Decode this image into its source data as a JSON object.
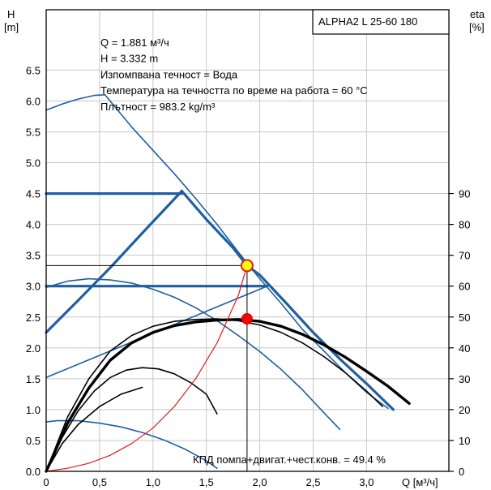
{
  "chart_data": {
    "type": "line",
    "title": "ALPHA2 L 25-60 180",
    "left_axis_label": {
      "symbol": "H",
      "unit": "[m]"
    },
    "right_axis_label": {
      "symbol": "eta",
      "unit": "[%]"
    },
    "x_axis_label": "Q [м³/ч]",
    "xlim": [
      0,
      3.8
    ],
    "ylim": [
      0,
      7.0
    ],
    "eta_lim": [
      0,
      90
    ],
    "x_ticks": [
      {
        "v": 0,
        "label": "0"
      },
      {
        "v": 0.5,
        "label": "0,5"
      },
      {
        "v": 1.0,
        "label": "1,0"
      },
      {
        "v": 1.5,
        "label": "1,5"
      },
      {
        "v": 2.0,
        "label": "2,0"
      },
      {
        "v": 2.5,
        "label": "2,5"
      },
      {
        "v": 3.0,
        "label": "3,0"
      }
    ],
    "y_ticks": [
      {
        "v": 0.0,
        "label": "0.0"
      },
      {
        "v": 0.5,
        "label": "0.5"
      },
      {
        "v": 1.0,
        "label": "1.0"
      },
      {
        "v": 1.5,
        "label": "1.5"
      },
      {
        "v": 2.0,
        "label": "2.0"
      },
      {
        "v": 2.5,
        "label": "2.5"
      },
      {
        "v": 3.0,
        "label": "3.0"
      },
      {
        "v": 3.5,
        "label": "3.5"
      },
      {
        "v": 4.0,
        "label": "4.0"
      },
      {
        "v": 4.5,
        "label": "4.5"
      },
      {
        "v": 5.0,
        "label": "5.0"
      },
      {
        "v": 5.5,
        "label": "5.5"
      },
      {
        "v": 6.0,
        "label": "6.0"
      },
      {
        "v": 6.5,
        "label": "6.5"
      }
    ],
    "eta_ticks": [
      {
        "v": 0,
        "label": "0"
      },
      {
        "v": 10,
        "label": "10"
      },
      {
        "v": 20,
        "label": "20"
      },
      {
        "v": 30,
        "label": "30"
      },
      {
        "v": 40,
        "label": "40"
      },
      {
        "v": 50,
        "label": "50"
      },
      {
        "v": 60,
        "label": "60"
      },
      {
        "v": 70,
        "label": "70"
      },
      {
        "v": 80,
        "label": "80"
      },
      {
        "v": 90,
        "label": "90"
      }
    ],
    "info_lines": [
      "Q = 1.881 м³/ч",
      "H = 3.332 m",
      "Изпомпвана течност = Вода",
      "Температура на течността по време на работа = 60 °C",
      "Плътност = 983.2 kg/m³"
    ],
    "efficiency_note": "КПД помпа+двигат.+чест.конв. = 49.4 %",
    "duty_point": {
      "q": 1.881,
      "h": 3.332
    },
    "efficiency_point": {
      "q": 1.881,
      "eta": 49.4
    },
    "series": [
      {
        "role": "pump-curve",
        "color": "#1f5fa0",
        "width": 1.6,
        "points": [
          [
            0.55,
            6.1
          ],
          [
            0.8,
            5.58
          ],
          [
            1.0,
            5.2
          ],
          [
            1.2,
            4.82
          ],
          [
            1.4,
            4.42
          ],
          [
            1.6,
            4.0
          ],
          [
            1.8,
            3.55
          ],
          [
            2.0,
            3.12
          ],
          [
            2.2,
            2.72
          ],
          [
            2.4,
            2.3
          ],
          [
            2.6,
            1.95
          ],
          [
            2.8,
            1.6
          ],
          [
            3.0,
            1.28
          ],
          [
            3.2,
            1.02
          ]
        ]
      },
      {
        "role": "pump-curve",
        "color": "#1f5fa0",
        "width": 1.6,
        "points": [
          [
            0,
            2.98
          ],
          [
            0.2,
            3.08
          ],
          [
            0.4,
            3.12
          ],
          [
            0.6,
            3.1
          ],
          [
            0.8,
            3.05
          ],
          [
            1.0,
            2.95
          ],
          [
            1.2,
            2.82
          ],
          [
            1.4,
            2.65
          ],
          [
            1.6,
            2.44
          ],
          [
            1.8,
            2.2
          ],
          [
            2.0,
            1.94
          ],
          [
            2.2,
            1.65
          ],
          [
            2.4,
            1.32
          ],
          [
            2.6,
            0.95
          ],
          [
            2.75,
            0.68
          ]
        ]
      },
      {
        "role": "pump-curve",
        "color": "#1f5fa0",
        "width": 1.6,
        "points": [
          [
            0,
            0.8
          ],
          [
            0.1,
            0.82
          ],
          [
            0.3,
            0.82
          ],
          [
            0.5,
            0.78
          ],
          [
            0.7,
            0.72
          ],
          [
            0.9,
            0.63
          ],
          [
            1.1,
            0.51
          ],
          [
            1.3,
            0.36
          ],
          [
            1.5,
            0.17
          ],
          [
            1.6,
            0.05
          ]
        ]
      },
      {
        "role": "pump-curve",
        "color": "#1f5fa0",
        "width": 1.6,
        "points": [
          [
            0,
            5.85
          ],
          [
            0.15,
            5.95
          ],
          [
            0.3,
            6.03
          ],
          [
            0.45,
            6.09
          ],
          [
            0.55,
            6.1
          ]
        ]
      },
      {
        "role": "max-curve",
        "color": "#1f5fa0",
        "width": 3.2,
        "points": [
          [
            1.27,
            4.54
          ],
          [
            1.5,
            4.08
          ],
          [
            1.75,
            3.62
          ],
          [
            1.881,
            3.332
          ],
          [
            2.0,
            3.18
          ],
          [
            2.25,
            2.72
          ],
          [
            2.5,
            2.25
          ],
          [
            2.75,
            1.82
          ],
          [
            3.0,
            1.42
          ],
          [
            3.25,
            1.0
          ]
        ]
      },
      {
        "role": "max-curve",
        "color": "#1f5fa0",
        "width": 3.2,
        "points": [
          [
            0,
            2.25
          ],
          [
            0.3,
            2.77
          ],
          [
            0.6,
            3.3
          ],
          [
            0.9,
            3.86
          ],
          [
            1.27,
            4.54
          ]
        ]
      },
      {
        "role": "setpoint-line",
        "color": "#1f5fa0",
        "width": 3.2,
        "points": [
          [
            0,
            4.5
          ],
          [
            1.27,
            4.5
          ]
        ]
      },
      {
        "role": "setpoint-line",
        "color": "#1f5fa0",
        "width": 3.2,
        "points": [
          [
            0,
            3.0
          ],
          [
            2.07,
            3.0
          ]
        ]
      },
      {
        "role": "setpoint-line",
        "color": "#1f5fa0",
        "width": 1.6,
        "points": [
          [
            0,
            1.52
          ],
          [
            2.07,
            3.0
          ]
        ]
      },
      {
        "role": "efficiency",
        "color": "#000000",
        "width": 3.4,
        "points": [
          [
            0,
            0
          ],
          [
            0.2,
            0.78
          ],
          [
            0.4,
            1.35
          ],
          [
            0.6,
            1.8
          ],
          [
            0.8,
            2.08
          ],
          [
            1.0,
            2.25
          ],
          [
            1.2,
            2.36
          ],
          [
            1.4,
            2.42
          ],
          [
            1.6,
            2.45
          ],
          [
            1.8,
            2.46
          ],
          [
            2.0,
            2.43
          ],
          [
            2.2,
            2.35
          ],
          [
            2.4,
            2.22
          ],
          [
            2.6,
            2.05
          ],
          [
            2.8,
            1.85
          ],
          [
            3.0,
            1.62
          ],
          [
            3.2,
            1.38
          ],
          [
            3.4,
            1.1
          ]
        ]
      },
      {
        "role": "efficiency",
        "color": "#000000",
        "width": 1.6,
        "points": [
          [
            0,
            0
          ],
          [
            0.2,
            0.88
          ],
          [
            0.4,
            1.5
          ],
          [
            0.6,
            1.95
          ],
          [
            0.8,
            2.2
          ],
          [
            1.0,
            2.35
          ],
          [
            1.2,
            2.43
          ],
          [
            1.4,
            2.46
          ],
          [
            1.6,
            2.47
          ],
          [
            1.8,
            2.44
          ],
          [
            2.0,
            2.37
          ],
          [
            2.2,
            2.25
          ],
          [
            2.4,
            2.08
          ],
          [
            2.6,
            1.86
          ],
          [
            2.8,
            1.6
          ],
          [
            3.0,
            1.3
          ],
          [
            3.15,
            1.05
          ]
        ]
      },
      {
        "role": "efficiency",
        "color": "#000000",
        "width": 1.6,
        "points": [
          [
            0,
            0
          ],
          [
            0.15,
            0.55
          ],
          [
            0.3,
            0.98
          ],
          [
            0.45,
            1.3
          ],
          [
            0.6,
            1.52
          ],
          [
            0.75,
            1.64
          ],
          [
            0.9,
            1.68
          ],
          [
            1.05,
            1.66
          ],
          [
            1.2,
            1.58
          ],
          [
            1.35,
            1.44
          ],
          [
            1.5,
            1.25
          ],
          [
            1.6,
            0.93
          ]
        ]
      },
      {
        "role": "efficiency",
        "color": "#000000",
        "width": 1.6,
        "points": [
          [
            0,
            0
          ],
          [
            0.15,
            0.45
          ],
          [
            0.3,
            0.76
          ],
          [
            0.5,
            1.05
          ],
          [
            0.7,
            1.25
          ],
          [
            0.9,
            1.36
          ]
        ]
      },
      {
        "role": "power",
        "color": "#e31a1c",
        "width": 1.2,
        "points": [
          [
            0,
            0
          ],
          [
            0.2,
            0.05
          ],
          [
            0.4,
            0.13
          ],
          [
            0.6,
            0.26
          ],
          [
            0.8,
            0.45
          ],
          [
            1.0,
            0.7
          ],
          [
            1.2,
            1.05
          ],
          [
            1.4,
            1.5
          ],
          [
            1.6,
            2.08
          ],
          [
            1.8,
            2.85
          ],
          [
            1.881,
            3.332
          ]
        ]
      }
    ]
  }
}
